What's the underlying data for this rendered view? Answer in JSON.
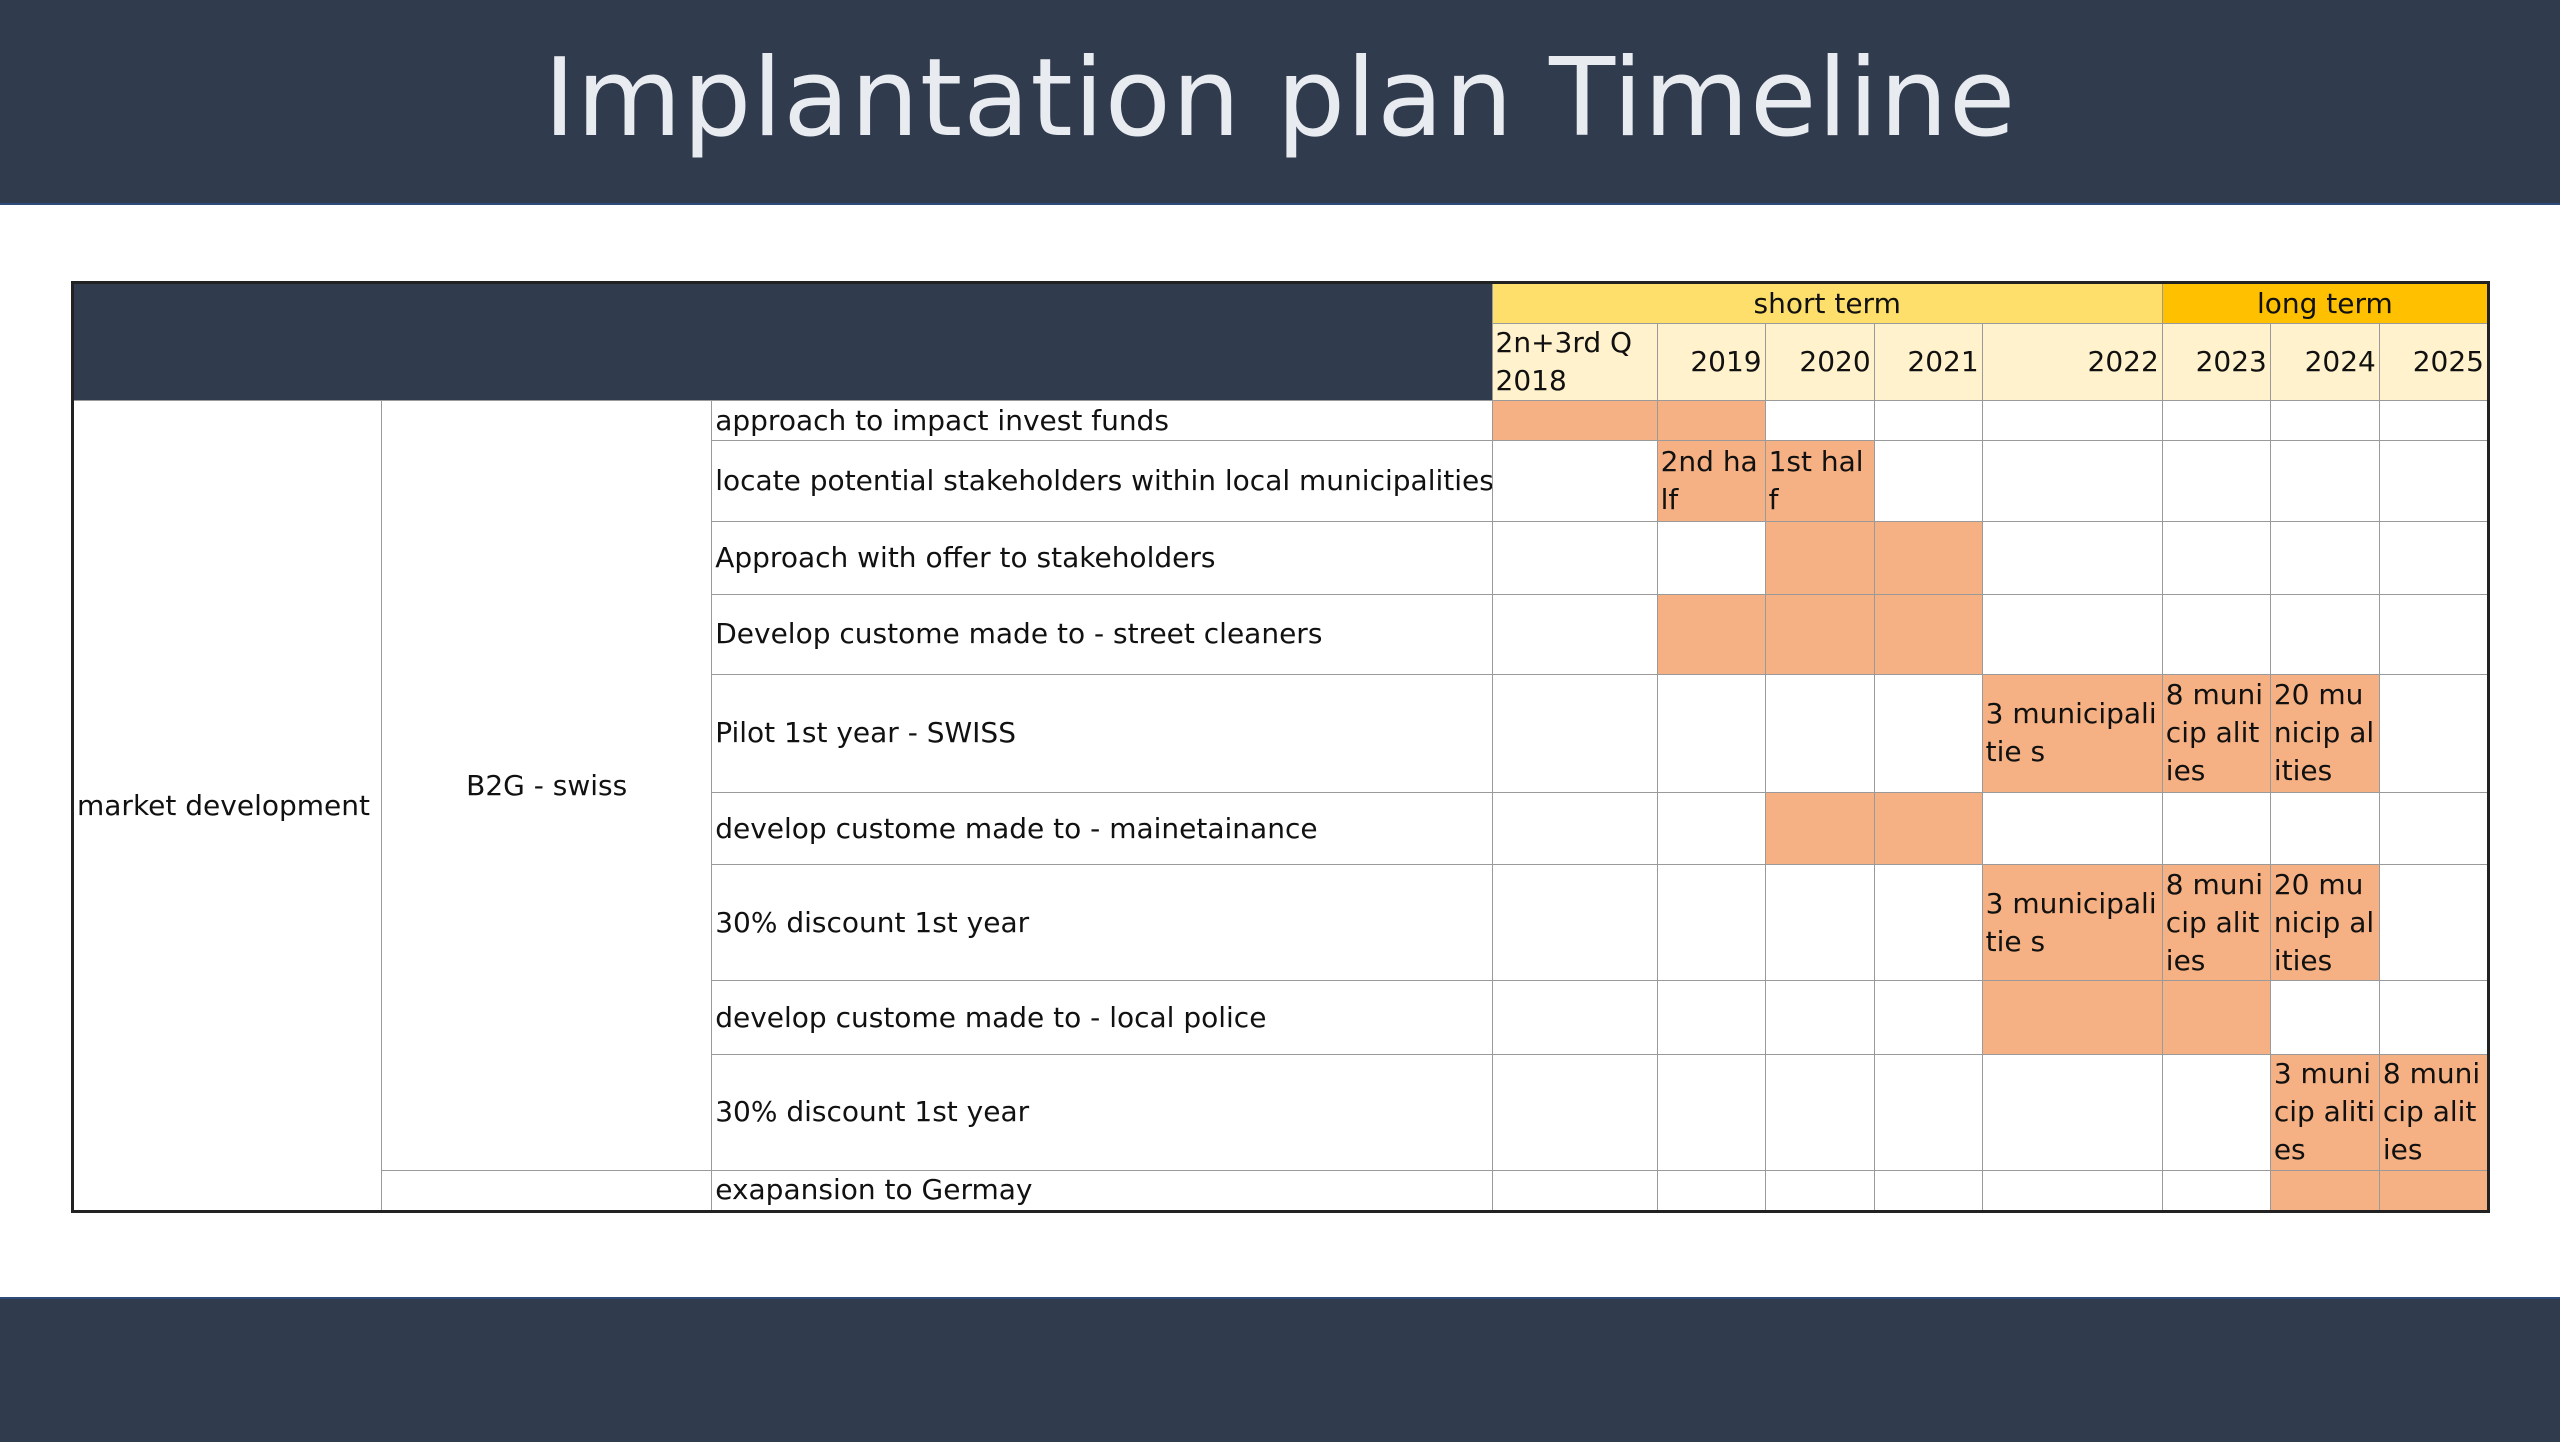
{
  "slide": {
    "title": "Implantation plan Timeline"
  },
  "table": {
    "groups": {
      "short_term": "short term",
      "long_term": "long term"
    },
    "years": [
      {
        "line1": "2n+3rd Q",
        "line2": "2018"
      },
      {
        "line1": "",
        "line2": "2019"
      },
      {
        "line1": "",
        "line2": "2020"
      },
      {
        "line1": "",
        "line2": "2021"
      },
      {
        "line1": "",
        "line2": "2022"
      },
      {
        "line1": "",
        "line2": "2023"
      },
      {
        "line1": "",
        "line2": "2024"
      },
      {
        "line1": "",
        "line2": "2025"
      }
    ],
    "area": "market development",
    "segment": "B2G - swiss",
    "tasks": [
      {
        "name": "approach to impact invest funds",
        "cells": [
          "fill",
          "fill",
          "",
          "",
          "",
          "",
          "",
          ""
        ]
      },
      {
        "name": "locate potential stakeholders within local municipalities",
        "cells": [
          "",
          "2nd half",
          "1st half",
          "",
          "",
          "",
          "",
          ""
        ]
      },
      {
        "name": "Approach with offer to stakeholders",
        "cells": [
          "",
          "",
          "fill",
          "fill",
          "",
          "",
          "",
          ""
        ]
      },
      {
        "name": "Develop custome made to - street cleaners",
        "cells": [
          "",
          "fill",
          "fill",
          "fill",
          "",
          "",
          "",
          ""
        ]
      },
      {
        "name": "Pilot 1st year - SWISS",
        "cells": [
          "",
          "",
          "",
          "",
          "3 municipalitie s",
          "8 municip alities",
          "20 municip alities",
          ""
        ]
      },
      {
        "name": "develop custome made to - mainetainance",
        "cells": [
          "",
          "",
          "fill",
          "fill",
          "",
          "",
          "",
          ""
        ]
      },
      {
        "name": "30% discount 1st year",
        "cells": [
          "",
          "",
          "",
          "",
          "3 municipalitie s",
          "8 municip alities",
          "20 municip alities",
          ""
        ]
      },
      {
        "name": "develop custome made to - local police",
        "cells": [
          "",
          "",
          "",
          "",
          "fill",
          "fill",
          "",
          ""
        ]
      },
      {
        "name": "30% discount 1st year",
        "cells": [
          "",
          "",
          "",
          "",
          "",
          "",
          "3 municip alities",
          "8 municip alities"
        ]
      },
      {
        "name": "exapansion to Germay",
        "cells": [
          "",
          "",
          "",
          "",
          "",
          "",
          "fill",
          "fill"
        ]
      }
    ],
    "colors": {
      "header_dark": "#313b4e",
      "short_term": "#ffdf6b",
      "long_term": "#ffc000",
      "year_row": "#fff2cc",
      "active_fill": "#f5b183"
    }
  }
}
